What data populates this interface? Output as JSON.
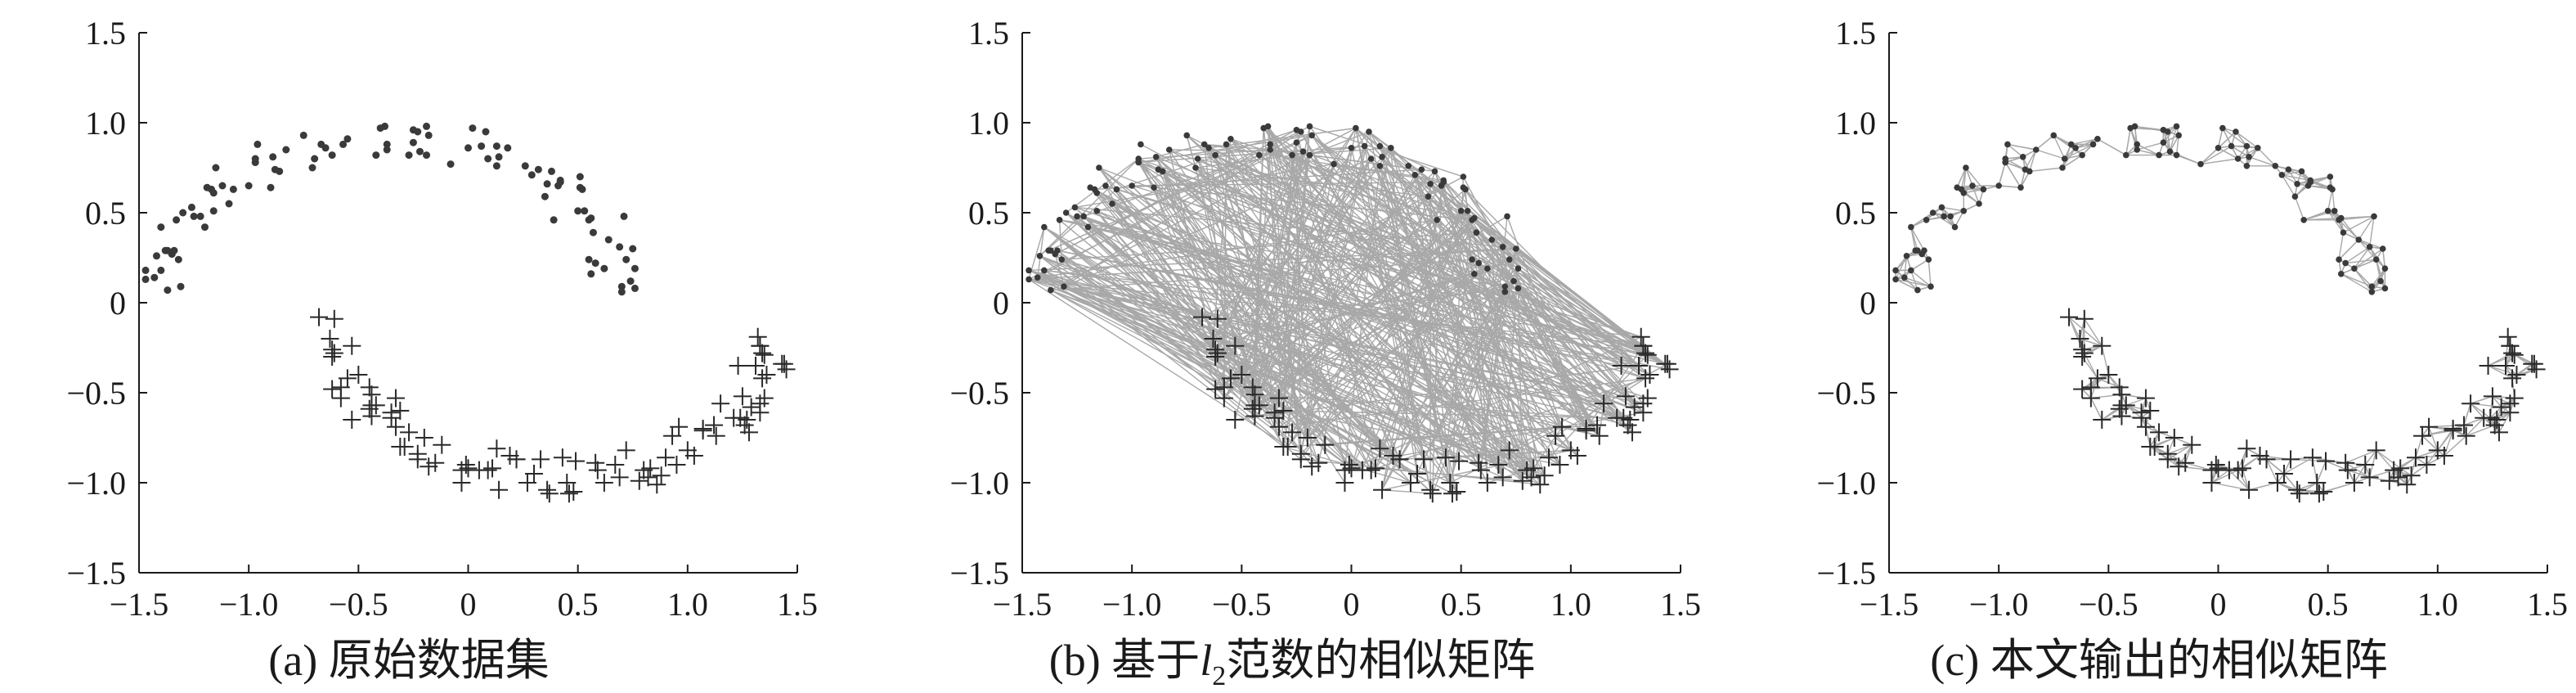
{
  "chart_data": [
    {
      "type": "scatter",
      "caption": "(a) 原始数据集",
      "xlim": [
        -1.5,
        1.5
      ],
      "ylim": [
        -1.5,
        1.5
      ],
      "xticks": [
        "−1.5",
        "−1.0",
        "−0.5",
        "0",
        "0.5",
        "1.0",
        "1.5"
      ],
      "yticks": [
        "1.5",
        "1.0",
        "0.5",
        "0",
        "−0.5",
        "−1.0",
        "−1.5"
      ],
      "grid": false,
      "series": [
        {
          "marker": "dot",
          "points": []
        },
        {
          "marker": "plus",
          "points": []
        }
      ]
    },
    {
      "type": "scatter",
      "caption_prefix": "(b) 基于",
      "caption_var": "l",
      "caption_sub": "2",
      "caption_suffix": "范数的相似矩阵",
      "xlim": [
        -1.5,
        1.5
      ],
      "ylim": [
        -1.5,
        1.5
      ],
      "xticks": [
        "−1.5",
        "−1.0",
        "−0.5",
        "0",
        "0.5",
        "1.0",
        "1.5"
      ],
      "yticks": [
        "1.5",
        "1.0",
        "0.5",
        "0",
        "−0.5",
        "−1.0",
        "−1.5"
      ],
      "grid": false,
      "edges": "dense graph connecting points across both classes",
      "series": [
        {
          "marker": "dot",
          "points": []
        },
        {
          "marker": "plus",
          "points": []
        }
      ]
    },
    {
      "type": "scatter",
      "caption": "(c) 本文输出的相似矩阵",
      "xlim": [
        -1.5,
        1.5
      ],
      "ylim": [
        -1.5,
        1.5
      ],
      "xticks": [
        "−1.5",
        "−1.0",
        "−0.5",
        "0",
        "0.5",
        "1.0",
        "1.5"
      ],
      "yticks": [
        "1.5",
        "1.0",
        "0.5",
        "0",
        "−0.5",
        "−1.0",
        "−1.5"
      ],
      "grid": false,
      "edges": "local neighbor graph within each class",
      "series": [
        {
          "marker": "dot",
          "points": []
        },
        {
          "marker": "plus",
          "points": []
        }
      ]
    }
  ]
}
